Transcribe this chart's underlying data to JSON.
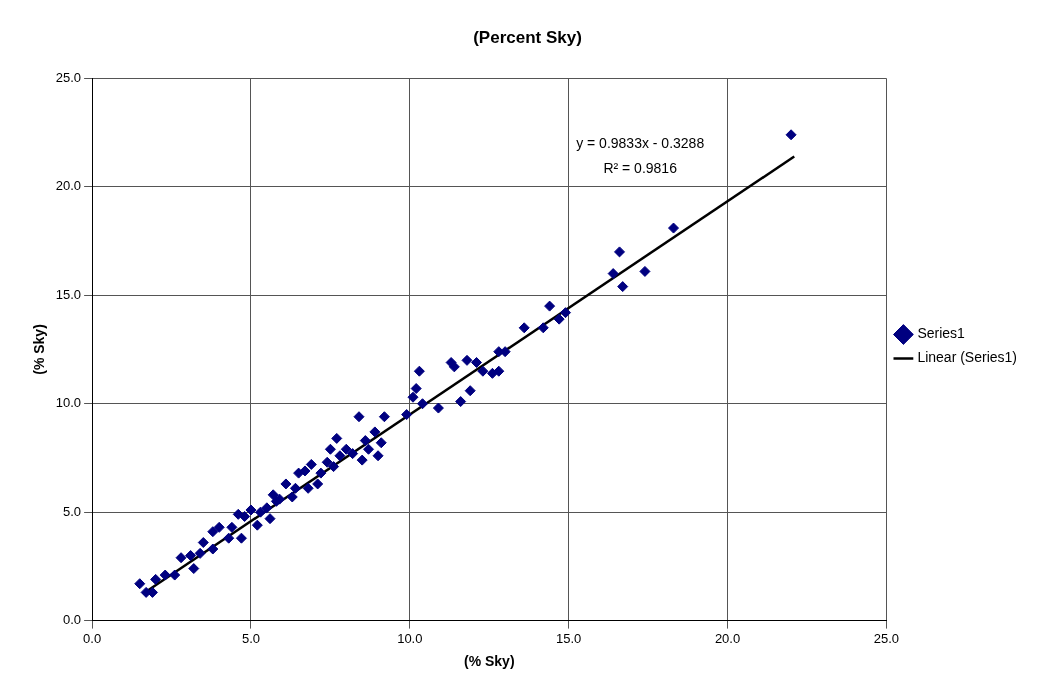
{
  "chart_data": {
    "type": "scatter",
    "title": "(Percent Sky)",
    "xlabel": "(% Sky)",
    "ylabel": "(% Sky)",
    "xlim": [
      0,
      25
    ],
    "xticks": [
      {
        "value": 0,
        "label": "0.0"
      },
      {
        "value": 5,
        "label": "5.0"
      },
      {
        "value": 10,
        "label": "10.0"
      },
      {
        "value": 15,
        "label": "15.0"
      },
      {
        "value": 20,
        "label": "20.0"
      },
      {
        "value": 25,
        "label": "25.0"
      }
    ],
    "ylim": [
      0,
      25
    ],
    "yticks": [
      {
        "value": 0,
        "label": "0.0"
      },
      {
        "value": 5,
        "label": "5.0"
      },
      {
        "value": 10,
        "label": "10.0"
      },
      {
        "value": 15,
        "label": "15.0"
      },
      {
        "value": 20,
        "label": "20.0"
      },
      {
        "value": 25,
        "label": "25.0"
      }
    ],
    "grid": true,
    "legend": "right",
    "marker": "diamond",
    "annotations": [
      "y = 0.9833x - 0.3288",
      "R² = 0.9816"
    ],
    "series": [
      {
        "name": "Series1",
        "color": "#000080",
        "x": [
          1.5,
          1.7,
          1.9,
          2.0,
          2.3,
          2.6,
          2.8,
          3.1,
          3.2,
          3.4,
          3.5,
          3.8,
          3.8,
          4.0,
          4.3,
          4.4,
          4.6,
          4.7,
          4.8,
          5.0,
          5.2,
          5.3,
          5.5,
          5.6,
          5.7,
          5.8,
          5.9,
          6.1,
          6.3,
          6.4,
          6.5,
          6.7,
          6.8,
          6.9,
          7.1,
          7.2,
          7.4,
          7.5,
          7.6,
          7.7,
          7.8,
          8.0,
          8.2,
          8.4,
          8.5,
          8.6,
          8.7,
          8.9,
          9.0,
          9.1,
          9.2,
          9.9,
          10.1,
          10.2,
          10.3,
          10.4,
          10.9,
          11.3,
          11.4,
          11.6,
          11.8,
          11.9,
          12.1,
          12.3,
          12.6,
          12.8,
          12.8,
          13.0,
          13.6,
          14.2,
          14.4,
          14.7,
          14.9,
          16.4,
          16.6,
          16.7,
          17.4,
          18.3,
          22.0
        ],
        "values": [
          1.7,
          1.3,
          1.3,
          1.9,
          2.1,
          2.1,
          2.9,
          3.0,
          2.4,
          3.1,
          3.6,
          4.1,
          3.3,
          4.3,
          3.8,
          4.3,
          4.9,
          3.8,
          4.8,
          5.1,
          4.4,
          5.0,
          5.2,
          4.7,
          5.8,
          5.5,
          5.6,
          6.3,
          5.7,
          6.1,
          6.8,
          6.9,
          6.1,
          7.2,
          6.3,
          6.8,
          7.3,
          7.9,
          7.1,
          8.4,
          7.6,
          7.9,
          7.7,
          9.4,
          7.4,
          8.3,
          7.9,
          8.7,
          7.6,
          8.2,
          9.4,
          9.5,
          10.3,
          10.7,
          11.5,
          10.0,
          9.8,
          11.9,
          11.7,
          10.1,
          12.0,
          10.6,
          11.9,
          11.5,
          11.4,
          12.4,
          11.5,
          12.4,
          13.5,
          13.5,
          14.5,
          13.9,
          14.2,
          16.0,
          17.0,
          15.4,
          16.1,
          18.1,
          22.4
        ]
      },
      {
        "name": "Linear (Series1)",
        "color": "#000000",
        "type": "line",
        "marker": "none",
        "x": [
          1.6,
          22.1
        ],
        "values": [
          1.24,
          21.4
        ]
      }
    ]
  }
}
